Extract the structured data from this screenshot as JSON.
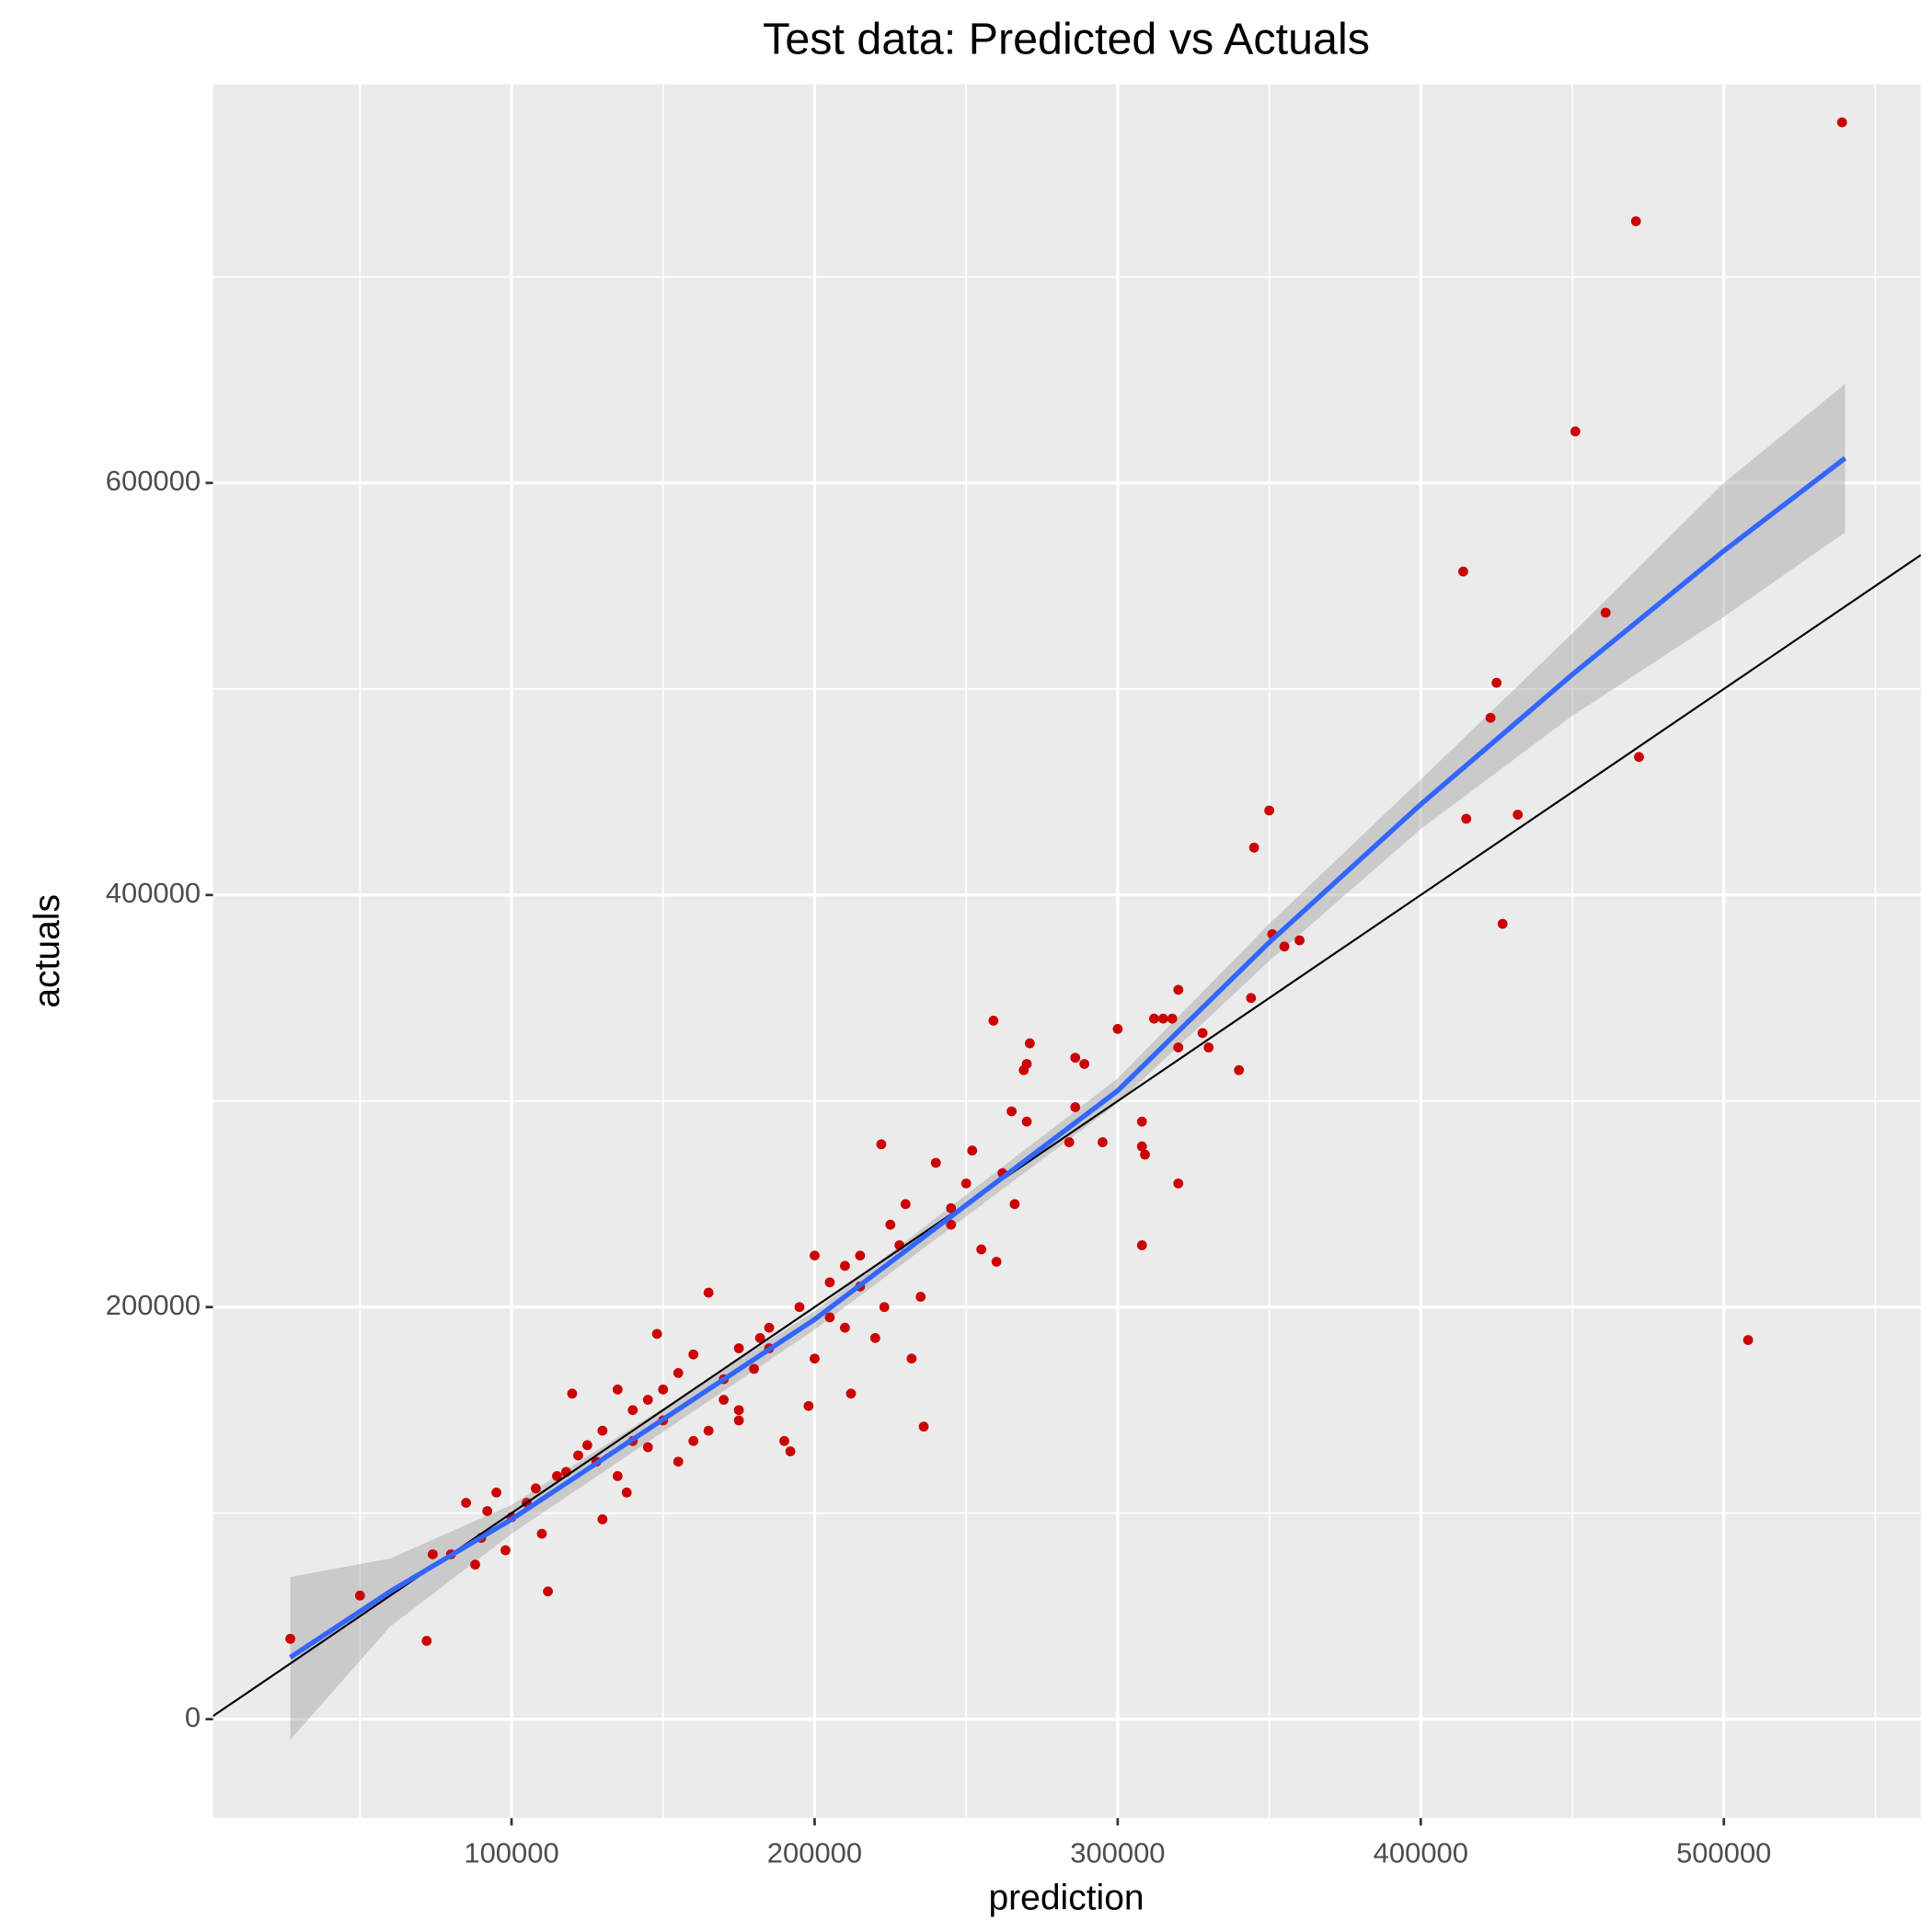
{
  "chart_data": {
    "type": "scatter",
    "title": "Test data: Predicted vs Actuals",
    "x_label": "prediction",
    "y_label": "actuals",
    "xlim": [
      1500,
      565000
    ],
    "ylim": [
      -48000,
      793500
    ],
    "xticks": [
      100000,
      200000,
      300000,
      400000,
      500000
    ],
    "yticks": [
      0,
      200000,
      400000,
      600000
    ],
    "grid": true,
    "color": "#cc0000",
    "x": [
      27000,
      50000,
      72000,
      74000,
      471000,
      539000,
      451000,
      414000,
      461000,
      425000,
      423000,
      472000,
      415000,
      432000,
      427000,
      508000,
      350000,
      345000,
      351000,
      360000,
      355000,
      344000,
      340000,
      320000,
      315000,
      318000,
      312000,
      328000,
      330000,
      320000,
      320000,
      309000,
      308000,
      308000,
      308000,
      300000,
      295000,
      289000,
      286000,
      286000,
      284000,
      271000,
      270000,
      269000,
      259000,
      270000,
      265000,
      260000,
      266000,
      255000,
      252000,
      236000,
      222000,
      230000,
      240000,
      245000,
      235000,
      225000,
      215000,
      210000,
      205000,
      200000,
      198000,
      212000,
      190000,
      192000,
      185000,
      180000,
      175000,
      170000,
      165000,
      160000,
      155000,
      150000,
      148000,
      145000,
      140000,
      138000,
      135000,
      130000,
      128000,
      125000,
      120000,
      118000,
      115000,
      112000,
      110000,
      108000,
      105000,
      100000,
      98000,
      95000,
      92000,
      90000,
      88000,
      85000,
      80000,
      160000,
      165000,
      170000,
      175000,
      182000,
      195000,
      205000,
      215000,
      220000,
      228000,
      250000,
      262000,
      232000,
      245000,
      155000,
      145000,
      135000,
      130000,
      122000,
      140000,
      150000,
      175000,
      185000,
      200000,
      210000,
      223000
    ],
    "y": [
      39000,
      60000,
      38000,
      80000,
      727000,
      775000,
      625000,
      557000,
      537000,
      503000,
      486000,
      467000,
      437000,
      439000,
      386000,
      184000,
      441000,
      423000,
      381000,
      378000,
      375000,
      350000,
      315000,
      354000,
      340000,
      340000,
      340000,
      333000,
      326000,
      326000,
      260000,
      274000,
      278000,
      290000,
      230000,
      335000,
      280000,
      318000,
      321000,
      297000,
      280000,
      328000,
      318000,
      315000,
      339000,
      290000,
      295000,
      222000,
      250000,
      228000,
      276000,
      142000,
      279000,
      250000,
      270000,
      248000,
      205000,
      240000,
      225000,
      190000,
      212000,
      225000,
      152000,
      158000,
      135000,
      130000,
      180000,
      170000,
      180000,
      165000,
      207000,
      177000,
      168000,
      145000,
      187000,
      155000,
      135000,
      110000,
      160000,
      140000,
      125000,
      133000,
      158000,
      120000,
      118000,
      62000,
      90000,
      112000,
      105000,
      98000,
      82000,
      110000,
      101000,
      88000,
      75000,
      105000,
      80000,
      135000,
      140000,
      155000,
      145000,
      185000,
      200000,
      195000,
      210000,
      185000,
      230000,
      260000,
      265000,
      175000,
      240000,
      125000,
      132000,
      118000,
      97000,
      128000,
      150000,
      160000,
      150000,
      190000,
      175000,
      220000,
      200000
    ],
    "smooth": {
      "color": "#3366ff",
      "band_color": "#999999",
      "x": [
        27000,
        60000,
        100000,
        200000,
        300000,
        350000,
        400000,
        450000,
        500000,
        540000
      ],
      "y": [
        30000,
        62000,
        97000,
        194000,
        305000,
        377000,
        444000,
        507000,
        567000,
        612000
      ],
      "ymin": [
        -10000,
        45000,
        90000,
        189000,
        299000,
        368000,
        432000,
        487000,
        535000,
        576000
      ],
      "ymax": [
        69000,
        78000,
        104000,
        198000,
        311000,
        386000,
        456000,
        527000,
        600000,
        648000
      ]
    },
    "abline": {
      "intercept": 0,
      "slope": 1,
      "color": "#000000"
    }
  }
}
